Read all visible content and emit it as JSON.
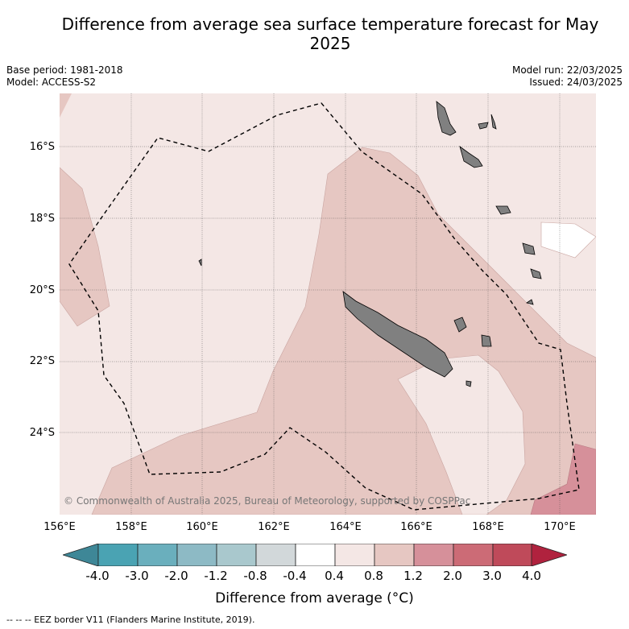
{
  "title": "Difference from average sea surface temperature forecast for May 2025",
  "meta": {
    "base_period": "Base period: 1981-2018",
    "model": "Model: ACCESS-S2",
    "model_run": "Model run: 22/03/2025",
    "issued": "Issued: 24/03/2025"
  },
  "map": {
    "lat_labels": [
      "16°S",
      "18°S",
      "20°S",
      "22°S",
      "24°S"
    ],
    "lon_labels": [
      "156°E",
      "158°E",
      "160°E",
      "162°E",
      "164°E",
      "166°E",
      "168°E",
      "170°E"
    ],
    "copyright": "© Commonwealth of Australia 2025, Bureau of Meteorology, supported by COSPPac"
  },
  "colorbar": {
    "title": "Difference from average (°C)",
    "tick_labels": [
      "-4.0",
      "-3.0",
      "-2.0",
      "-1.2",
      "-0.8",
      "-0.4",
      "0.4",
      "0.8",
      "1.2",
      "2.0",
      "3.0",
      "4.0"
    ],
    "colors": [
      "#4aa3b3",
      "#6aafbd",
      "#8dbac5",
      "#a9c8cd",
      "#d2d8da",
      "#ffffff",
      "#f4e7e5",
      "#e6c7c2",
      "#d6909a",
      "#cc6b76",
      "#bf4a5a"
    ],
    "low_extend_color": "#3e8797",
    "high_extend_color": "#b0223e"
  },
  "footnote": "--  --  -- EEZ border V11 (Flanders Marine Institute, 2019)."
}
